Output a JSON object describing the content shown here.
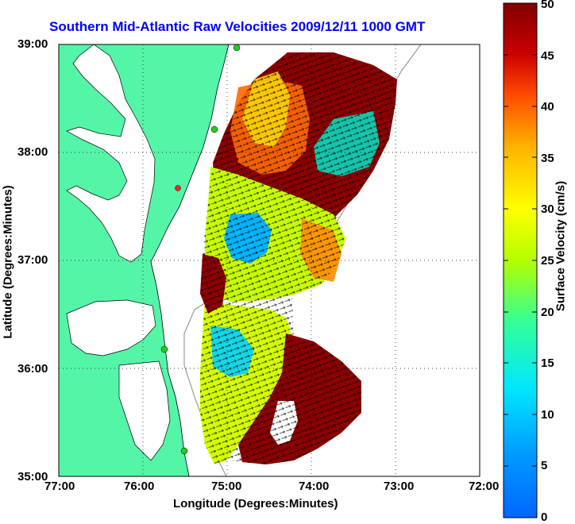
{
  "title": "Southern Mid-Atlantic Raw Velocities 2009/12/11 1000 GMT",
  "x_axis": {
    "label": "Longitude (Degrees:Minutes)",
    "ticks": [
      "77:00",
      "76:00",
      "75:00",
      "74:00",
      "73:00",
      "72:00"
    ]
  },
  "y_axis": {
    "label": "Latitude (Degrees:Minutes)",
    "ticks": [
      "39:00",
      "38:00",
      "37:00",
      "36:00",
      "35:00"
    ]
  },
  "colorbar": {
    "label": "Surface Velocity (cm/s)",
    "ticks": [
      "50",
      "45",
      "40",
      "35",
      "30",
      "25",
      "20",
      "15",
      "10",
      "5",
      "0"
    ],
    "range": [
      0,
      50
    ],
    "colormap": "jet"
  },
  "map": {
    "lon_range": [
      -77,
      -72
    ],
    "lat_range": [
      35,
      39
    ],
    "grid": "dotted",
    "land_color": "#55f5a8",
    "water_color": "#ffffff",
    "station_markers": "green",
    "site_marker": "red"
  }
}
